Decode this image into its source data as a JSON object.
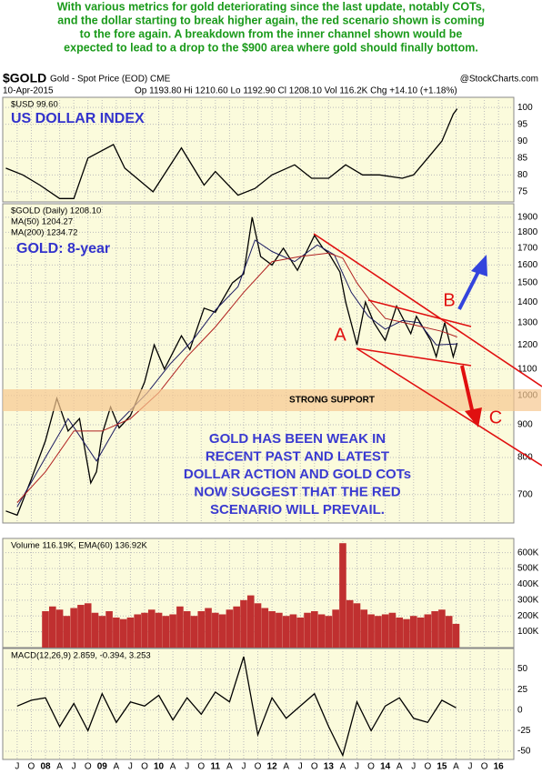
{
  "annotation_lines": [
    "With various metrics for gold deteriorating since the last update, notably COTs,",
    "and the dollar starting to break higher again, the red scenario shown is coming",
    "to the fore again. A breakdown from the inner channel shown would be",
    "expected to lead to a drop to the $900 area where gold should finally bottom."
  ],
  "header": {
    "symbol": "$GOLD",
    "name": "Gold - Spot Price (EOD) CME",
    "source": "@StockCharts.com",
    "date": "10-Apr-2015",
    "stats": "Op 1193.80   Hi 1210.60   Lo 1192.90   Cl 1208.10   Vol 116.2K   Chg +14.10 (+1.18%)"
  },
  "labels": {
    "usd": "US DOLLAR INDEX",
    "gold": "GOLD: 8-year",
    "support": "STRONG SUPPORT",
    "a": "A",
    "b": "B",
    "c": "C",
    "comment": [
      "GOLD HAS BEEN WEAK IN",
      "RECENT PAST AND LATEST",
      "DOLLAR ACTION AND GOLD COTs",
      "NOW SUGGEST THAT THE RED",
      "SCENARIO WILL PREVAIL."
    ]
  },
  "chart_data": [
    {
      "type": "line",
      "ylim": [
        72,
        103
      ],
      "yticks": [
        75,
        80,
        85,
        90,
        95,
        100
      ],
      "grid": true,
      "series": [
        {
          "name": "$USD 99.60",
          "color": "#000000",
          "x": [
            2007.3,
            2007.6,
            2007.9,
            2008.25,
            2008.5,
            2008.75,
            2009.2,
            2009.4,
            2009.9,
            2010.4,
            2010.8,
            2011.0,
            2011.4,
            2011.7,
            2012.0,
            2012.4,
            2012.7,
            2013.0,
            2013.3,
            2013.6,
            2013.9,
            2014.3,
            2014.5,
            2014.8,
            2015.0,
            2015.2,
            2015.27
          ],
          "values": [
            82,
            80,
            77,
            73,
            73,
            85,
            89,
            82,
            75,
            88,
            77,
            81,
            74,
            76,
            80,
            83,
            79,
            79,
            83,
            80,
            80,
            79,
            80,
            86,
            90,
            98,
            99.6
          ]
        }
      ]
    },
    {
      "type": "line",
      "log": true,
      "ylim": [
        632,
        1995
      ],
      "yticks": [
        700,
        800,
        900,
        1000,
        1100,
        1200,
        1300,
        1400,
        1500,
        1600,
        1700,
        1800,
        1900
      ],
      "grid": true,
      "series": [
        {
          "name": "$GOLD (Daily) 1208.10",
          "color": "#000000",
          "x": [
            2007.3,
            2007.5,
            2007.75,
            2008.0,
            2008.2,
            2008.4,
            2008.6,
            2008.8,
            2008.9,
            2009.0,
            2009.15,
            2009.3,
            2009.5,
            2009.75,
            2009.92,
            2010.1,
            2010.4,
            2010.55,
            2010.8,
            2011.0,
            2011.3,
            2011.5,
            2011.65,
            2011.8,
            2012.0,
            2012.2,
            2012.45,
            2012.75,
            2012.9,
            2013.0,
            2013.2,
            2013.3,
            2013.5,
            2013.65,
            2013.8,
            2014.0,
            2014.2,
            2014.45,
            2014.55,
            2014.8,
            2014.9,
            2015.05,
            2015.2,
            2015.27
          ],
          "values": [
            660,
            650,
            740,
            850,
            990,
            880,
            920,
            730,
            760,
            870,
            960,
            890,
            930,
            1050,
            1200,
            1100,
            1240,
            1180,
            1370,
            1350,
            1500,
            1550,
            1900,
            1650,
            1600,
            1700,
            1570,
            1780,
            1700,
            1670,
            1560,
            1400,
            1200,
            1400,
            1300,
            1220,
            1380,
            1250,
            1330,
            1220,
            1150,
            1300,
            1150,
            1208.1
          ]
        },
        {
          "name": "MA(50) 1204.27",
          "color": "#1a1a60",
          "x": [
            2007.5,
            2008.0,
            2008.4,
            2008.9,
            2009.3,
            2009.8,
            2010.2,
            2010.6,
            2011.0,
            2011.4,
            2011.7,
            2012.0,
            2012.4,
            2012.8,
            2013.1,
            2013.4,
            2013.7,
            2014.0,
            2014.3,
            2014.6,
            2014.9,
            2015.27
          ],
          "values": [
            670,
            800,
            920,
            790,
            910,
            1010,
            1120,
            1220,
            1360,
            1480,
            1750,
            1680,
            1620,
            1720,
            1660,
            1450,
            1330,
            1270,
            1310,
            1300,
            1200,
            1204.27
          ]
        },
        {
          "name": "MA(200) 1234.72",
          "color": "#b02020",
          "x": [
            2007.5,
            2008.0,
            2008.5,
            2009.0,
            2009.5,
            2010.0,
            2010.5,
            2011.0,
            2011.5,
            2012.0,
            2012.5,
            2013.0,
            2013.25,
            2013.5,
            2013.75,
            2014.0,
            2014.5,
            2015.0,
            2015.27
          ],
          "values": [
            680,
            760,
            880,
            880,
            920,
            1010,
            1150,
            1280,
            1450,
            1620,
            1650,
            1670,
            1640,
            1500,
            1400,
            1320,
            1290,
            1260,
            1234.72
          ]
        }
      ]
    },
    {
      "type": "bar",
      "title": "Volume 116.19K, EMA(60) 136.92K",
      "color": "#c03030",
      "ylim": [
        0,
        690000
      ],
      "yticks": [
        {
          "value": 100000,
          "label": "100K"
        },
        {
          "value": 200000,
          "label": "200K"
        },
        {
          "value": 300000,
          "label": "300K"
        },
        {
          "value": 400000,
          "label": "400K"
        },
        {
          "value": 500000,
          "label": "500K"
        },
        {
          "value": 600000,
          "label": "600K"
        }
      ],
      "grid": true,
      "x": [
        2008.0,
        2008.125,
        2008.25,
        2008.375,
        2008.5,
        2008.625,
        2008.75,
        2008.875,
        2009.0,
        2009.125,
        2009.25,
        2009.375,
        2009.5,
        2009.625,
        2009.75,
        2009.875,
        2010.0,
        2010.125,
        2010.25,
        2010.375,
        2010.5,
        2010.625,
        2010.75,
        2010.875,
        2011.0,
        2011.125,
        2011.25,
        2011.375,
        2011.5,
        2011.625,
        2011.75,
        2011.875,
        2012.0,
        2012.125,
        2012.25,
        2012.375,
        2012.5,
        2012.625,
        2012.75,
        2012.875,
        2013.0,
        2013.125,
        2013.25,
        2013.375,
        2013.5,
        2013.625,
        2013.75,
        2013.875,
        2014.0,
        2014.125,
        2014.25,
        2014.375,
        2014.5,
        2014.625,
        2014.75,
        2014.875,
        2015.0,
        2015.125,
        2015.25
      ],
      "values": [
        230000,
        260000,
        240000,
        200000,
        250000,
        270000,
        280000,
        220000,
        200000,
        230000,
        190000,
        180000,
        190000,
        210000,
        220000,
        240000,
        220000,
        200000,
        210000,
        260000,
        230000,
        200000,
        230000,
        250000,
        220000,
        210000,
        240000,
        260000,
        300000,
        330000,
        280000,
        250000,
        230000,
        220000,
        200000,
        210000,
        190000,
        220000,
        230000,
        210000,
        200000,
        240000,
        660000,
        300000,
        280000,
        240000,
        210000,
        200000,
        210000,
        220000,
        190000,
        180000,
        200000,
        190000,
        210000,
        230000,
        240000,
        200000,
        150000
      ]
    },
    {
      "type": "line",
      "ylim": [
        -60,
        75
      ],
      "yticks": [
        -50,
        -25,
        0,
        25,
        50
      ],
      "grid": true,
      "series": [
        {
          "name": "MACD(12,26,9) 2.859, -0.394, 3.253",
          "color": "#000000",
          "x": [
            2007.5,
            2007.75,
            2008.0,
            2008.25,
            2008.5,
            2008.75,
            2009.0,
            2009.25,
            2009.5,
            2009.75,
            2010.0,
            2010.25,
            2010.5,
            2010.75,
            2011.0,
            2011.25,
            2011.5,
            2011.75,
            2012.0,
            2012.25,
            2012.5,
            2012.75,
            2013.0,
            2013.25,
            2013.5,
            2013.75,
            2014.0,
            2014.25,
            2014.5,
            2014.75,
            2015.0,
            2015.25
          ],
          "values": [
            5,
            12,
            15,
            -20,
            8,
            -25,
            20,
            -15,
            10,
            5,
            18,
            -12,
            15,
            -5,
            22,
            10,
            65,
            -30,
            15,
            -10,
            5,
            20,
            -20,
            -55,
            10,
            -25,
            5,
            15,
            -10,
            -15,
            12,
            2.859
          ]
        }
      ],
      "xlim": [
        2007.245,
        2016.27
      ],
      "xticks": [
        {
          "value": 2007.5,
          "label": "J"
        },
        {
          "value": 2007.75,
          "label": "O"
        },
        {
          "value": 2008,
          "label": "08"
        },
        {
          "value": 2008.25,
          "label": "A"
        },
        {
          "value": 2008.5,
          "label": "J"
        },
        {
          "value": 2008.75,
          "label": "O"
        },
        {
          "value": 2009,
          "label": "09"
        },
        {
          "value": 2009.25,
          "label": "A"
        },
        {
          "value": 2009.5,
          "label": "J"
        },
        {
          "value": 2009.75,
          "label": "O"
        },
        {
          "value": 2010,
          "label": "10"
        },
        {
          "value": 2010.25,
          "label": "A"
        },
        {
          "value": 2010.5,
          "label": "J"
        },
        {
          "value": 2010.75,
          "label": "O"
        },
        {
          "value": 2011,
          "label": "11"
        },
        {
          "value": 2011.25,
          "label": "A"
        },
        {
          "value": 2011.5,
          "label": "J"
        },
        {
          "value": 2011.75,
          "label": "O"
        },
        {
          "value": 2012,
          "label": "12"
        },
        {
          "value": 2012.25,
          "label": "A"
        },
        {
          "value": 2012.5,
          "label": "J"
        },
        {
          "value": 2012.75,
          "label": "O"
        },
        {
          "value": 2013,
          "label": "13"
        },
        {
          "value": 2013.25,
          "label": "A"
        },
        {
          "value": 2013.5,
          "label": "J"
        },
        {
          "value": 2013.75,
          "label": "O"
        },
        {
          "value": 2014,
          "label": "14"
        },
        {
          "value": 2014.25,
          "label": "A"
        },
        {
          "value": 2014.5,
          "label": "J"
        },
        {
          "value": 2014.75,
          "label": "O"
        },
        {
          "value": 2015,
          "label": "15"
        },
        {
          "value": 2015.25,
          "label": "A"
        },
        {
          "value": 2015.5,
          "label": "J"
        },
        {
          "value": 2015.75,
          "label": "O"
        },
        {
          "value": 2016,
          "label": "16"
        }
      ]
    }
  ]
}
